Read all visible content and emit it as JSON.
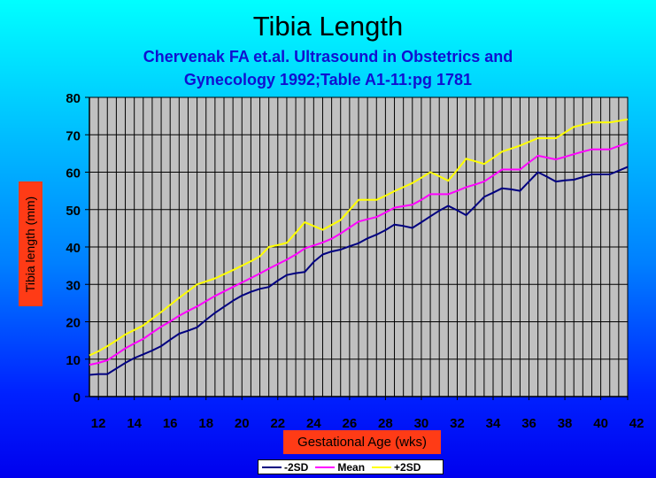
{
  "chart_data": {
    "type": "line",
    "title": "Tibia Length",
    "subtitle_lines": [
      "Chervenak FA et.al. Ultrasound in Obstetrics and",
      "Gynecology 1992;Table A1-11:pg 1781"
    ],
    "xlabel": "Gestational Age (wks)",
    "ylabel": "Tibia length (mm)",
    "xlim": [
      11.5,
      41.5
    ],
    "ylim": [
      0,
      80
    ],
    "x_ticks": [
      12,
      14,
      16,
      18,
      20,
      22,
      24,
      26,
      28,
      30,
      32,
      34,
      36,
      38,
      40,
      42
    ],
    "y_ticks": [
      0,
      10,
      20,
      30,
      40,
      50,
      60,
      70,
      80
    ],
    "grid": true,
    "legend_position": "bottom",
    "x": [
      11.5,
      12,
      12.5,
      13,
      13.5,
      14,
      14.5,
      15,
      15.5,
      16,
      16.5,
      17,
      17.5,
      18,
      18.5,
      19,
      19.5,
      20,
      20.5,
      21,
      21.5,
      22,
      22.5,
      23,
      23.5,
      24,
      24.5,
      25,
      25.5,
      26,
      26.5,
      27,
      27.5,
      28,
      28.5,
      29,
      29.5,
      30,
      30.5,
      31,
      31.5,
      32,
      32.5,
      33,
      33.5,
      34,
      34.5,
      35,
      35.5,
      36,
      36.5,
      37,
      37.5,
      38,
      38.5,
      39,
      39.5,
      40,
      40.5,
      41,
      41.5
    ],
    "series": [
      {
        "name": "-2SD",
        "color": "#000080",
        "values": [
          5.8,
          6.0,
          6.0,
          7.5,
          9.0,
          10.3,
          11.3,
          12.3,
          13.5,
          15.2,
          16.8,
          17.6,
          18.5,
          20.5,
          22.4,
          24.0,
          25.6,
          27.0,
          28.0,
          28.8,
          29.3,
          31.0,
          32.5,
          33.0,
          33.3,
          36.0,
          38.0,
          38.8,
          39.3,
          40.2,
          41.0,
          42.3,
          43.3,
          44.5,
          46.0,
          45.6,
          45.1,
          46.6,
          48.2,
          49.7,
          51.0,
          49.8,
          48.5,
          50.9,
          53.4,
          54.5,
          55.7,
          55.4,
          55.0,
          57.5,
          60.0,
          58.8,
          57.5,
          57.8,
          58.0,
          58.7,
          59.4,
          59.4,
          59.4,
          60.4,
          61.4
        ]
      },
      {
        "name": "Mean",
        "color": "#ff00ff",
        "values": [
          8.5,
          9.0,
          9.7,
          11.3,
          12.9,
          14.2,
          15.4,
          17.1,
          18.7,
          20.1,
          21.6,
          22.9,
          24.1,
          25.5,
          26.9,
          28.1,
          29.3,
          30.5,
          31.7,
          32.9,
          34.2,
          35.4,
          36.6,
          38.0,
          39.6,
          40.4,
          41.2,
          42.2,
          43.6,
          45.2,
          46.8,
          47.4,
          48.0,
          49.2,
          50.5,
          50.9,
          51.3,
          52.6,
          54.1,
          54.1,
          54.1,
          55.0,
          56.0,
          56.7,
          57.5,
          59.1,
          60.7,
          60.7,
          60.7,
          62.6,
          64.4,
          63.9,
          63.4,
          64.1,
          64.8,
          65.5,
          66.1,
          66.1,
          66.1,
          67.0,
          67.8
        ]
      },
      {
        "name": "+2SD",
        "color": "#ffff00",
        "values": [
          11.0,
          12.1,
          13.5,
          15.0,
          16.6,
          17.8,
          19.0,
          20.8,
          22.6,
          24.5,
          26.4,
          28.2,
          30.0,
          30.8,
          31.6,
          32.7,
          33.8,
          35.0,
          36.2,
          37.5,
          40.0,
          40.5,
          41.1,
          43.8,
          46.6,
          45.6,
          44.6,
          45.9,
          47.2,
          49.9,
          52.6,
          52.6,
          52.6,
          53.7,
          54.9,
          56.0,
          57.1,
          58.5,
          60.0,
          58.9,
          57.7,
          60.6,
          63.6,
          62.9,
          62.2,
          63.8,
          65.5,
          66.3,
          67.1,
          68.1,
          69.1,
          69.1,
          69.1,
          70.6,
          72.1,
          72.7,
          73.3,
          73.3,
          73.3,
          73.7,
          74.1
        ]
      }
    ]
  }
}
